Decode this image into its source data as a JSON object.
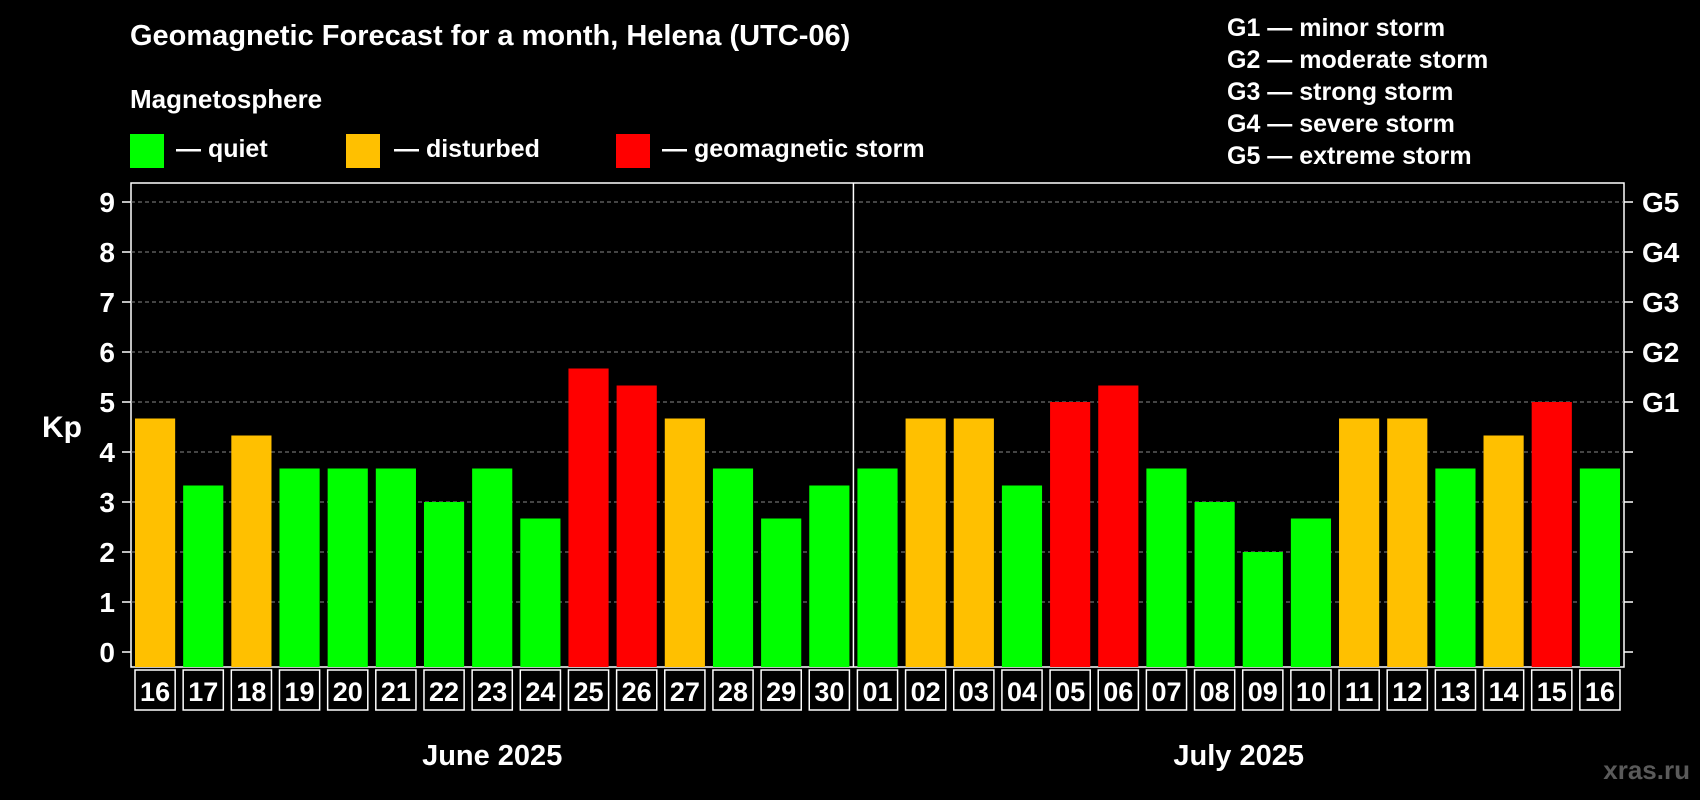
{
  "title": "Geomagnetic Forecast for a month, Helena (UTC-06)",
  "legend": {
    "heading": "Magnetosphere",
    "items": [
      {
        "label": "— quiet",
        "color": "#00ff00"
      },
      {
        "label": "— disturbed",
        "color": "#ffc000"
      },
      {
        "label": "— geomagnetic storm",
        "color": "#ff0000"
      }
    ]
  },
  "g_scale": [
    "G1 — minor storm",
    "G2 — moderate storm",
    "G3 — strong storm",
    "G4 — severe storm",
    "G5 — extreme storm"
  ],
  "watermark": "xras.ru",
  "chart_data": {
    "type": "bar",
    "title": "Geomagnetic Forecast for a month, Helena (UTC-06)",
    "ylabel": "Kp",
    "ylim": [
      0,
      9
    ],
    "yticks": [
      "0",
      "1",
      "2",
      "3",
      "4",
      "5",
      "6",
      "7",
      "8",
      "9"
    ],
    "right_axis_labels": [
      {
        "kp": 5,
        "label": "G1"
      },
      {
        "kp": 6,
        "label": "G2"
      },
      {
        "kp": 7,
        "label": "G3"
      },
      {
        "kp": 8,
        "label": "G4"
      },
      {
        "kp": 9,
        "label": "G5"
      }
    ],
    "months": [
      {
        "label": "June 2025",
        "count": 15
      },
      {
        "label": "July 2025",
        "count": 16
      }
    ],
    "categories": [
      "16",
      "17",
      "18",
      "19",
      "20",
      "21",
      "22",
      "23",
      "24",
      "25",
      "26",
      "27",
      "28",
      "29",
      "30",
      "01",
      "02",
      "03",
      "04",
      "05",
      "06",
      "07",
      "08",
      "09",
      "10",
      "11",
      "12",
      "13",
      "14",
      "15",
      "16"
    ],
    "values": [
      4.67,
      3.33,
      4.33,
      3.67,
      3.67,
      3.67,
      3.0,
      3.67,
      2.67,
      5.67,
      5.33,
      4.67,
      3.67,
      2.67,
      3.33,
      3.67,
      4.67,
      4.67,
      3.33,
      5.0,
      5.33,
      3.67,
      3.0,
      2.0,
      2.67,
      4.67,
      4.67,
      3.67,
      4.33,
      5.0,
      3.67
    ],
    "status": [
      "disturbed",
      "quiet",
      "disturbed",
      "quiet",
      "quiet",
      "quiet",
      "quiet",
      "quiet",
      "quiet",
      "storm",
      "storm",
      "disturbed",
      "quiet",
      "quiet",
      "quiet",
      "quiet",
      "disturbed",
      "disturbed",
      "quiet",
      "storm",
      "storm",
      "quiet",
      "quiet",
      "quiet",
      "quiet",
      "disturbed",
      "disturbed",
      "quiet",
      "disturbed",
      "storm",
      "quiet"
    ],
    "status_colors": {
      "quiet": "#00ff00",
      "disturbed": "#ffc000",
      "storm": "#ff0000"
    }
  }
}
